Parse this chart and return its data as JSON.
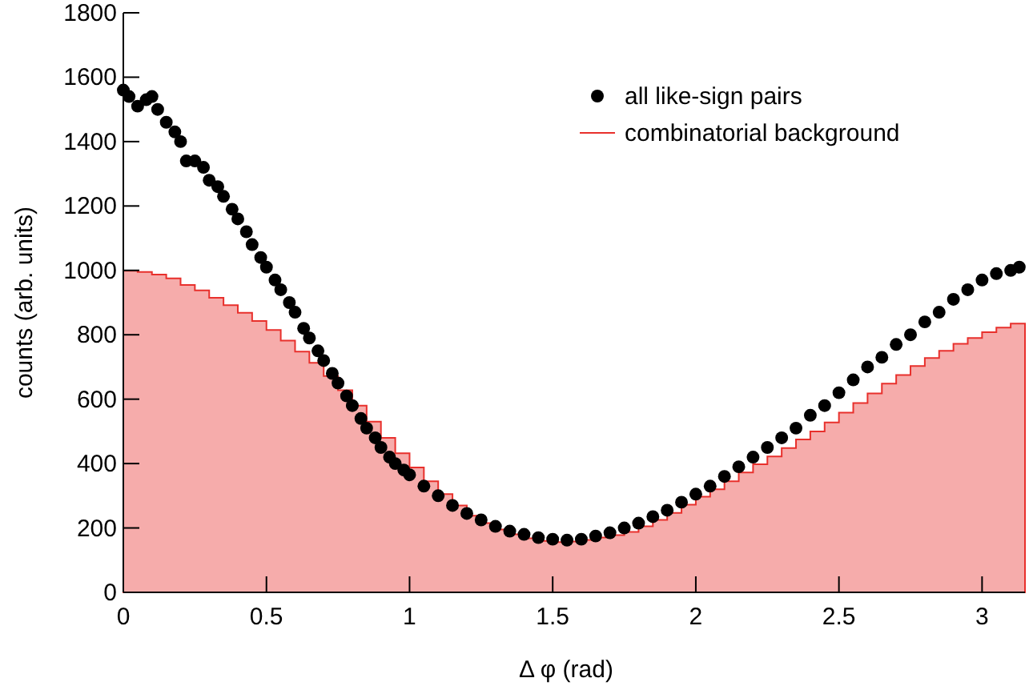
{
  "chart_data": {
    "type": "histogram",
    "xlabel": "Δ φ (rad)",
    "ylabel": "counts (arb. units)",
    "bins": [
      0,
      0.05,
      0.1,
      0.15,
      0.2,
      0.25,
      0.3,
      0.35,
      0.4,
      0.45,
      0.5,
      0.55,
      0.6,
      0.65,
      0.7,
      0.75,
      0.8,
      0.85,
      0.9,
      0.95,
      1,
      1.05,
      1.1,
      1.15,
      1.2,
      1.25,
      1.3,
      1.35,
      1.4,
      1.45,
      1.5,
      1.55,
      1.6,
      1.65,
      1.7,
      1.75,
      1.8,
      1.85,
      1.9,
      1.95,
      2,
      2.05,
      2.1,
      2.15,
      2.2,
      2.25,
      2.3,
      2.35,
      2.4,
      2.45,
      2.5,
      2.55,
      2.6,
      2.65,
      2.7,
      2.75,
      2.8,
      2.85,
      2.9,
      2.95,
      3,
      3.05,
      3.1,
      3.15
    ],
    "series": [
      {
        "type": "scatter",
        "name": "all like-sign pairs",
        "color": "#000000",
        "x": [
          0,
          0.02,
          0.05,
          0.08,
          0.1,
          0.12,
          0.15,
          0.18,
          0.2,
          0.22,
          0.25,
          0.28,
          0.3,
          0.33,
          0.35,
          0.38,
          0.4,
          0.43,
          0.45,
          0.48,
          0.5,
          0.53,
          0.55,
          0.58,
          0.6,
          0.63,
          0.65,
          0.68,
          0.7,
          0.73,
          0.75,
          0.78,
          0.8,
          0.83,
          0.85,
          0.88,
          0.9,
          0.93,
          0.95,
          0.98,
          1,
          1.05,
          1.1,
          1.15,
          1.2,
          1.25,
          1.3,
          1.35,
          1.4,
          1.45,
          1.5,
          1.55,
          1.6,
          1.65,
          1.7,
          1.75,
          1.8,
          1.85,
          1.9,
          1.95,
          2,
          2.05,
          2.1,
          2.15,
          2.2,
          2.25,
          2.3,
          2.35,
          2.4,
          2.45,
          2.5,
          2.55,
          2.6,
          2.65,
          2.7,
          2.75,
          2.8,
          2.85,
          2.9,
          2.95,
          3,
          3.05,
          3.1,
          3.13
        ],
        "values": [
          1560,
          1540,
          1510,
          1530,
          1540,
          1500,
          1460,
          1430,
          1400,
          1340,
          1340,
          1320,
          1280,
          1260,
          1230,
          1190,
          1160,
          1120,
          1080,
          1040,
          1010,
          970,
          940,
          900,
          870,
          820,
          790,
          750,
          720,
          680,
          650,
          610,
          580,
          540,
          510,
          480,
          450,
          420,
          400,
          380,
          365,
          330,
          300,
          270,
          245,
          225,
          205,
          190,
          180,
          170,
          165,
          162,
          165,
          175,
          185,
          200,
          215,
          235,
          255,
          280,
          305,
          330,
          360,
          390,
          420,
          450,
          480,
          510,
          550,
          580,
          620,
          660,
          700,
          730,
          770,
          800,
          840,
          870,
          910,
          940,
          970,
          990,
          1000,
          1010
        ]
      },
      {
        "type": "histogram",
        "name": "combinatorial background",
        "color": "#e8302c",
        "values": [
          999,
          995,
          987,
          975,
          955,
          938,
          915,
          892,
          868,
          843,
          815,
          782,
          748,
          713,
          672,
          628,
          580,
          530,
          480,
          432,
          388,
          345,
          305,
          270,
          238,
          215,
          195,
          180,
          168,
          160,
          156,
          158,
          163,
          170,
          178,
          188,
          205,
          225,
          247,
          272,
          297,
          320,
          345,
          372,
          398,
          422,
          448,
          475,
          500,
          528,
          558,
          588,
          618,
          648,
          675,
          703,
          728,
          750,
          772,
          790,
          808,
          822,
          835
        ]
      }
    ],
    "xlim": [
      0,
      3.15
    ],
    "xticks": [
      0,
      0.5,
      1,
      1.5,
      2,
      2.5,
      3
    ],
    "ylim": [
      0,
      1800
    ],
    "yticks": [
      0,
      200,
      400,
      600,
      800,
      1000,
      1200,
      1400,
      1600,
      1800
    ],
    "marker": "circle",
    "legend": "top right",
    "grid": false
  }
}
